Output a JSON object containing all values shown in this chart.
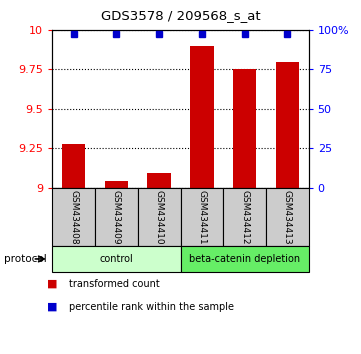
{
  "title": "GDS3578 / 209568_s_at",
  "samples": [
    "GSM434408",
    "GSM434409",
    "GSM434410",
    "GSM434411",
    "GSM434412",
    "GSM434413"
  ],
  "red_values": [
    9.28,
    9.04,
    9.09,
    9.9,
    9.75,
    9.8
  ],
  "blue_values": [
    97.5,
    97.5,
    97.5,
    97.5,
    97.5,
    97.5
  ],
  "ylim_left": [
    9.0,
    10.0
  ],
  "ylim_right": [
    0,
    100
  ],
  "yticks_left": [
    9.0,
    9.25,
    9.5,
    9.75,
    10.0
  ],
  "ytick_labels_left": [
    "9",
    "9.25",
    "9.5",
    "9.75",
    "10"
  ],
  "yticks_right": [
    0,
    25,
    50,
    75,
    100
  ],
  "ytick_labels_right": [
    "0",
    "25",
    "50",
    "75",
    "100%"
  ],
  "groups": [
    {
      "label": "control",
      "samples": [
        0,
        1,
        2
      ],
      "color": "#ccffcc"
    },
    {
      "label": "beta-catenin depletion",
      "samples": [
        3,
        4,
        5
      ],
      "color": "#66ee66"
    }
  ],
  "bar_color": "#cc0000",
  "dot_color": "#0000cc",
  "legend_red_label": "transformed count",
  "legend_blue_label": "percentile rank within the sample",
  "protocol_label": "protocol",
  "sample_box_color": "#cccccc"
}
